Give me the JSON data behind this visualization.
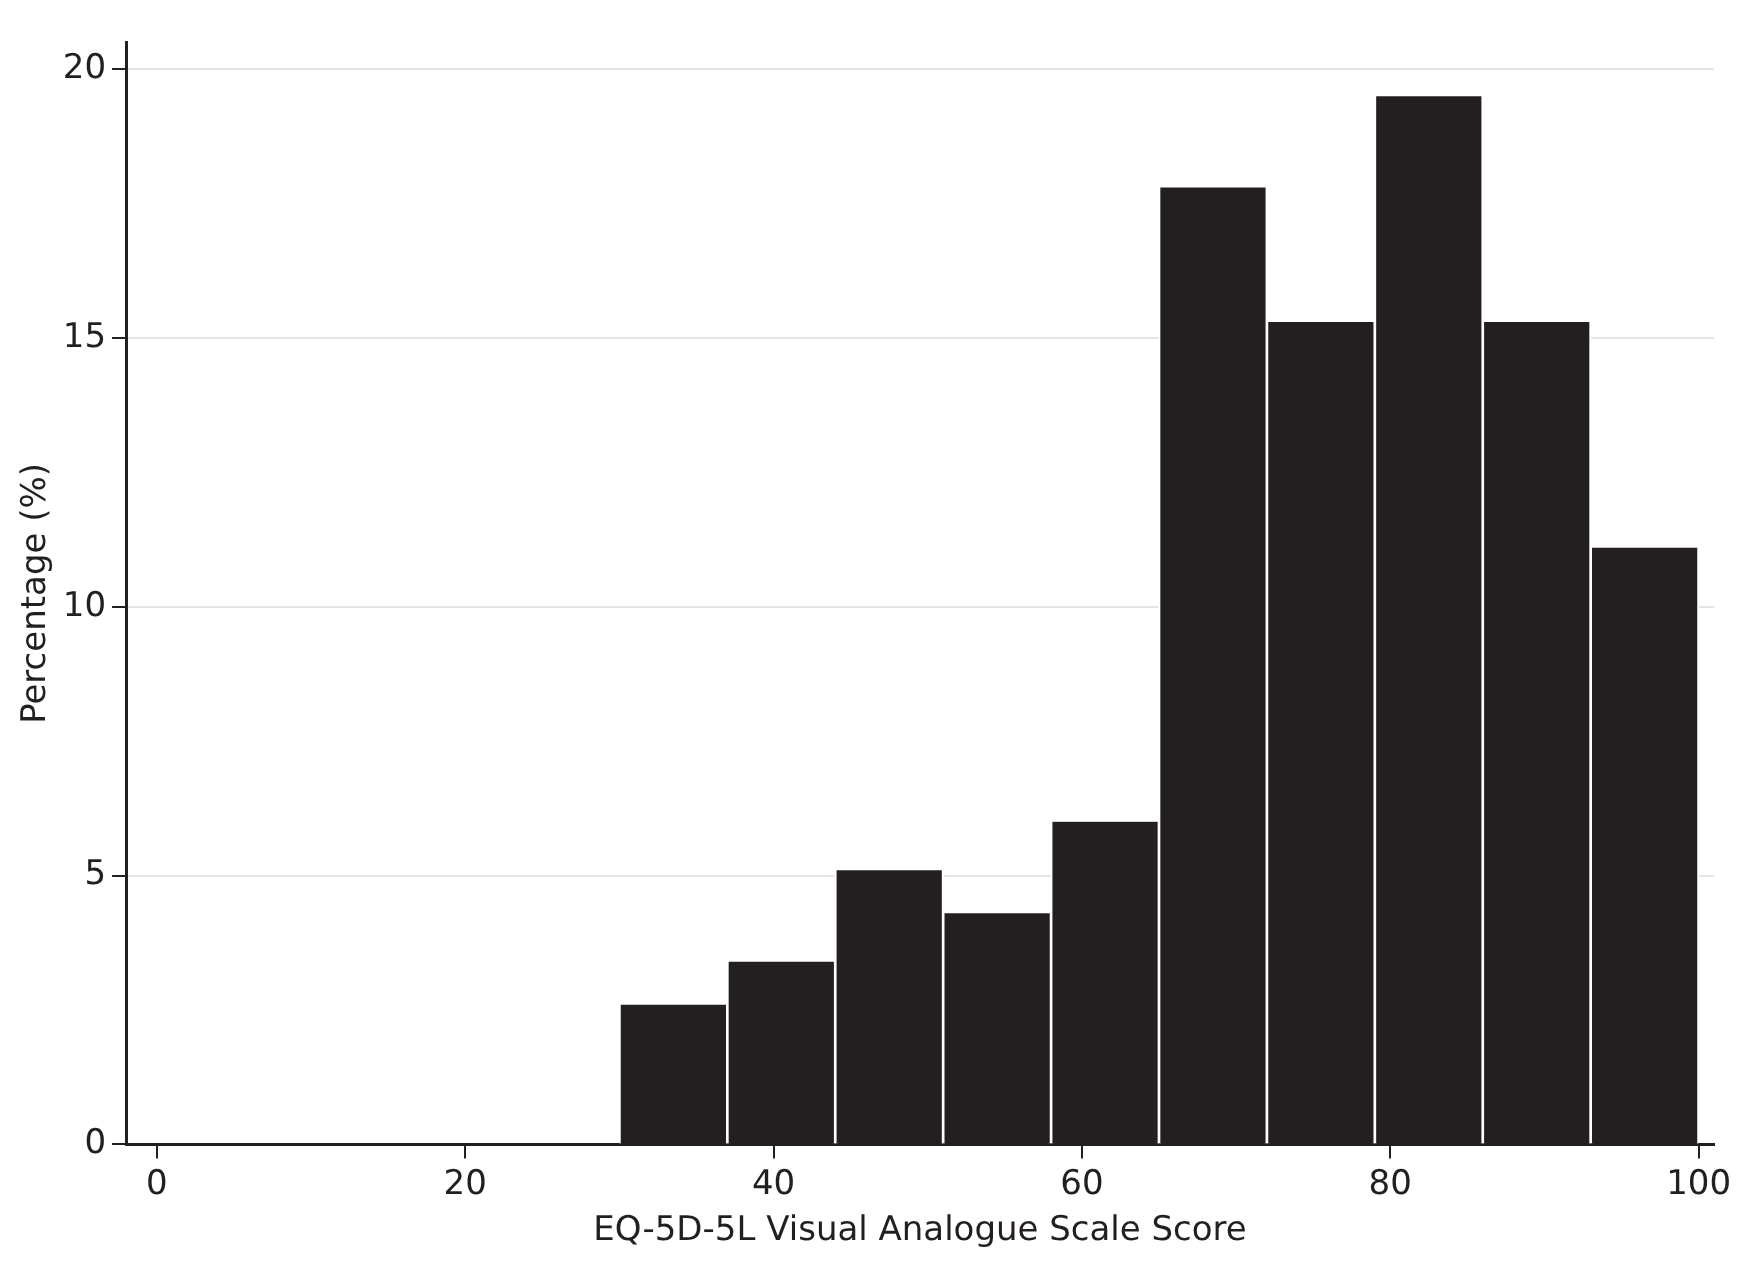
{
  "chart_data": {
    "type": "histogram",
    "xlabel": "EQ-5D-5L Visual Analogue Scale Score",
    "ylabel": "Percentage (%)",
    "bins": [
      30,
      37,
      44,
      51,
      58,
      65,
      72,
      79,
      86,
      93,
      100
    ],
    "values": [
      2.6,
      3.4,
      5.1,
      4.3,
      6.0,
      17.8,
      15.3,
      19.5,
      15.3,
      11.1
    ],
    "color": "#231f20",
    "xlim": [
      -2,
      101
    ],
    "xticks": [
      0,
      20,
      40,
      60,
      80,
      100
    ],
    "ylim": [
      0,
      20.5
    ],
    "yticks": [
      0,
      5,
      10,
      15,
      20
    ],
    "grid": "y",
    "legend": false
  }
}
